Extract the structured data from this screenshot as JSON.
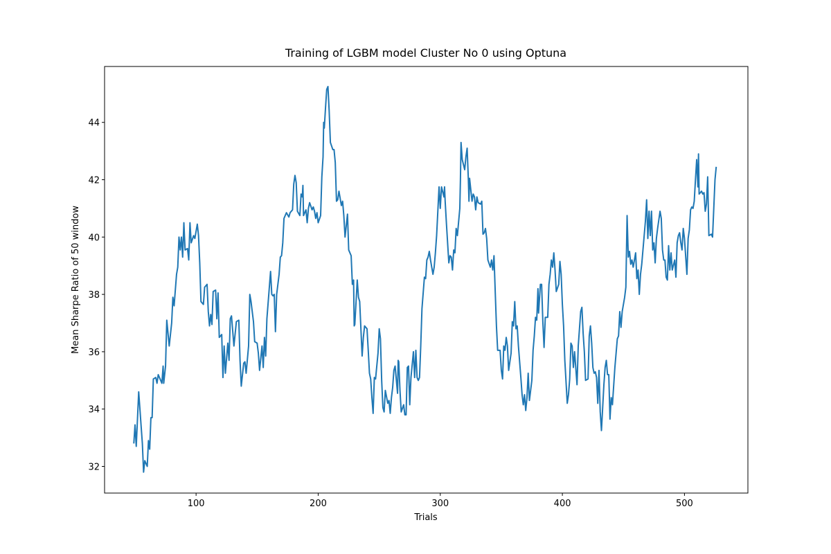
{
  "chart_data": {
    "type": "line",
    "title": "Training of LGBM model Cluster No 0 using Optuna",
    "xlabel": "Trials",
    "ylabel": "Mean Sharpe Ratio of 50 window",
    "color": "#1f77b4",
    "xlim": [
      25.05,
      551.95
    ],
    "ylim": [
      31.07,
      45.95
    ],
    "xticks": [
      100,
      200,
      300,
      400,
      500
    ],
    "yticks": [
      32,
      34,
      36,
      38,
      40,
      42,
      44
    ],
    "grid": false,
    "x": [
      49,
      50,
      51,
      53,
      56,
      57,
      58,
      60,
      61,
      62,
      63,
      64,
      65,
      67,
      68,
      69,
      72,
      73,
      73.5,
      75,
      76,
      78,
      80,
      81,
      82,
      84,
      85,
      86,
      87,
      88,
      89,
      90,
      91,
      93,
      94,
      95,
      96,
      98,
      99,
      101,
      102,
      103,
      104,
      106,
      107,
      109,
      110,
      111,
      112,
      113,
      114,
      116,
      117,
      118,
      119,
      121,
      122,
      123,
      124,
      126,
      127,
      128,
      129,
      131,
      133,
      135,
      136,
      137,
      139,
      140,
      141,
      143,
      144,
      145,
      147,
      148,
      150,
      151,
      152,
      154,
      155,
      156,
      157,
      158,
      160,
      161,
      162,
      163,
      164,
      165,
      166,
      168,
      169,
      170,
      171,
      172,
      173,
      174,
      176,
      177,
      178,
      179,
      180,
      181,
      182,
      183,
      185,
      186,
      187,
      187.5,
      188,
      190,
      191,
      192,
      193,
      195,
      196,
      197,
      198,
      199,
      200,
      202,
      203,
      204,
      204.5,
      205,
      206,
      207,
      208,
      209,
      210,
      212,
      213,
      214,
      215,
      216,
      217,
      219,
      220,
      221,
      222,
      223,
      224,
      225,
      227,
      228,
      229,
      229.5,
      230,
      232,
      233,
      234,
      235,
      236,
      237,
      238,
      240,
      241,
      242,
      243,
      244,
      245,
      246,
      247,
      249,
      250,
      251,
      252,
      253,
      254,
      255,
      257,
      258,
      259,
      260,
      261,
      262,
      263,
      265,
      265.5,
      266,
      267,
      268,
      270,
      271,
      272,
      273,
      274,
      275,
      276,
      278,
      279,
      280,
      281,
      282,
      283,
      284,
      285,
      287,
      288,
      289,
      290,
      291,
      292,
      294,
      295,
      296,
      297,
      298,
      299,
      300,
      301,
      303,
      303.5,
      304,
      305,
      307,
      308,
      309,
      310,
      311,
      312,
      313,
      314,
      316,
      316.5,
      317,
      318,
      320,
      321,
      322,
      323,
      323.5,
      324,
      326,
      327,
      328,
      329,
      330,
      331,
      333,
      334,
      335,
      336,
      337,
      338,
      339,
      341,
      342,
      343,
      344,
      345,
      346,
      347,
      349,
      350,
      351,
      352,
      353,
      354,
      355,
      356,
      358,
      359,
      360,
      361,
      362,
      363,
      364,
      366,
      367,
      368,
      369,
      370,
      371,
      372,
      373,
      375,
      376,
      377,
      378,
      379,
      380,
      380.5,
      382,
      383,
      384,
      385,
      386,
      388,
      389,
      390,
      391,
      392,
      393,
      394,
      395,
      397,
      398,
      399,
      400,
      401,
      402,
      404,
      405,
      406,
      407,
      408,
      409,
      410,
      412,
      413,
      414,
      415,
      416,
      417,
      418,
      419,
      421,
      422,
      423,
      424,
      425,
      426,
      427,
      428,
      429,
      430,
      431,
      432,
      434,
      435,
      436,
      437,
      438,
      439,
      440,
      441,
      443,
      444,
      445,
      446,
      447,
      448,
      449,
      451,
      452,
      453,
      454,
      455,
      456,
      457,
      458,
      460,
      461,
      462,
      463,
      464,
      465,
      466,
      468,
      469,
      470,
      471,
      472,
      473,
      474,
      475,
      476,
      477,
      478,
      480,
      481,
      482,
      483,
      484,
      485,
      486,
      487,
      488,
      489,
      490,
      492,
      493,
      494,
      495,
      496,
      497,
      498,
      499,
      500,
      502,
      503,
      504,
      505,
      506,
      507,
      508,
      509,
      510,
      511,
      511.5,
      512,
      514,
      515,
      516,
      517,
      518,
      519,
      520,
      522,
      523,
      524,
      525,
      526
    ],
    "values": [
      32.8,
      33.45,
      32.7,
      34.6,
      32.8,
      31.8,
      32.2,
      32.0,
      32.9,
      32.6,
      33.7,
      33.7,
      35.05,
      35.1,
      34.9,
      35.2,
      34.9,
      35.5,
      34.9,
      35.5,
      37.1,
      36.2,
      37.0,
      37.9,
      37.6,
      38.7,
      38.95,
      40.0,
      39.55,
      40.0,
      39.3,
      40.5,
      39.55,
      39.6,
      39.2,
      40.5,
      39.8,
      40.05,
      39.95,
      40.45,
      40.05,
      39.1,
      37.75,
      37.65,
      38.25,
      38.35,
      37.4,
      36.9,
      37.3,
      36.95,
      38.1,
      38.15,
      37.15,
      38.05,
      36.5,
      36.6,
      35.1,
      36.2,
      35.25,
      36.3,
      35.7,
      37.15,
      37.25,
      36.2,
      37.05,
      37.1,
      35.7,
      34.8,
      35.6,
      35.65,
      35.25,
      36.2,
      38.0,
      37.75,
      37.05,
      36.35,
      36.3,
      35.95,
      35.35,
      36.2,
      35.45,
      36.5,
      35.85,
      37.15,
      38.25,
      38.8,
      38.0,
      37.95,
      38.0,
      36.7,
      38.0,
      38.7,
      39.3,
      39.35,
      39.8,
      40.65,
      40.75,
      40.85,
      40.7,
      40.85,
      40.9,
      40.95,
      41.85,
      42.15,
      41.9,
      40.9,
      40.75,
      41.5,
      41.4,
      41.8,
      40.75,
      40.95,
      40.5,
      41.0,
      41.2,
      40.95,
      41.05,
      40.9,
      40.65,
      40.85,
      40.5,
      40.75,
      42.1,
      42.8,
      44.0,
      43.8,
      44.5,
      45.15,
      45.25,
      44.4,
      43.3,
      43.05,
      43.05,
      42.6,
      41.25,
      41.3,
      41.6,
      41.1,
      41.25,
      40.75,
      40.0,
      40.4,
      40.8,
      39.55,
      39.35,
      38.35,
      38.5,
      36.9,
      36.95,
      38.5,
      37.9,
      37.75,
      36.8,
      35.85,
      36.5,
      36.9,
      36.8,
      36.05,
      35.25,
      35.05,
      34.4,
      33.85,
      35.1,
      35.05,
      35.95,
      36.8,
      36.45,
      35.0,
      34.05,
      33.9,
      34.65,
      34.2,
      34.3,
      33.85,
      34.4,
      34.75,
      35.35,
      35.5,
      34.55,
      35.7,
      35.65,
      34.65,
      33.9,
      34.15,
      33.8,
      33.8,
      35.45,
      35.5,
      34.15,
      35.1,
      36.0,
      35.1,
      36.05,
      35.1,
      35.0,
      35.1,
      36.2,
      37.5,
      38.6,
      38.55,
      39.2,
      39.3,
      39.5,
      39.2,
      38.7,
      38.95,
      39.45,
      40.05,
      40.9,
      41.75,
      41.0,
      41.75,
      41.4,
      41.75,
      41.25,
      40.5,
      39.1,
      39.35,
      39.3,
      38.85,
      39.55,
      39.45,
      40.3,
      40.05,
      41.0,
      42.0,
      43.3,
      42.7,
      42.35,
      42.8,
      43.1,
      42.0,
      41.25,
      42.05,
      41.25,
      41.5,
      41.4,
      40.95,
      41.4,
      41.2,
      41.15,
      41.25,
      40.1,
      40.15,
      40.3,
      39.95,
      39.2,
      38.95,
      39.2,
      38.85,
      39.35,
      38.1,
      36.9,
      36.05,
      36.05,
      35.35,
      35.05,
      36.2,
      36.05,
      36.5,
      36.2,
      35.35,
      35.95,
      37.05,
      36.9,
      37.75,
      36.8,
      36.9,
      36.2,
      35.1,
      34.5,
      34.15,
      34.5,
      33.95,
      34.4,
      35.25,
      34.3,
      35.0,
      36.05,
      36.55,
      37.2,
      37.1,
      38.2,
      37.35,
      38.35,
      38.35,
      37.05,
      36.15,
      37.2,
      37.2,
      38.35,
      38.7,
      39.2,
      38.95,
      39.45,
      38.85,
      38.1,
      38.35,
      39.15,
      38.7,
      37.65,
      36.9,
      35.7,
      34.2,
      34.5,
      35.05,
      36.3,
      36.2,
      35.45,
      36.0,
      34.85,
      36.2,
      36.8,
      37.4,
      37.55,
      36.65,
      36.0,
      35.0,
      35.05,
      36.55,
      36.9,
      36.3,
      35.45,
      35.25,
      35.3,
      35.1,
      34.2,
      35.35,
      33.9,
      33.25,
      34.85,
      35.45,
      35.7,
      35.2,
      35.2,
      33.65,
      34.4,
      34.15,
      35.45,
      35.95,
      36.45,
      36.55,
      37.4,
      36.85,
      37.4,
      37.9,
      38.25,
      40.75,
      39.3,
      39.5,
      39.05,
      39.2,
      38.95,
      39.45,
      38.55,
      38.85,
      38.0,
      38.7,
      39.05,
      39.55,
      40.55,
      41.3,
      39.95,
      40.9,
      40.05,
      40.9,
      39.55,
      39.8,
      39.1,
      39.95,
      40.3,
      40.9,
      40.65,
      39.55,
      39.2,
      39.2,
      38.6,
      38.5,
      39.7,
      38.85,
      39.45,
      38.85,
      39.2,
      38.6,
      39.8,
      40.05,
      40.15,
      39.8,
      39.55,
      40.3,
      39.95,
      38.7,
      39.95,
      40.25,
      40.95,
      41.05,
      41.0,
      41.25,
      42.0,
      42.7,
      41.75,
      42.9,
      41.5,
      41.6,
      41.5,
      41.55,
      40.9,
      41.15,
      42.1,
      40.05,
      40.1,
      40.0,
      41.0,
      42.0,
      42.45
    ]
  }
}
